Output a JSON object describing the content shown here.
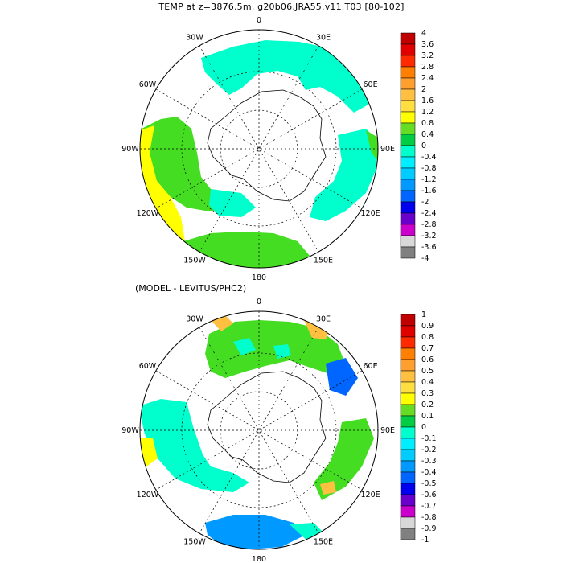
{
  "title": "TEMP at z=3876.5m, g20b06.JRA55.v11.T03 [80-102]",
  "subtitle": "(MODEL - LEVITUS/PHC2)",
  "longitude_labels": [
    "0",
    "30E",
    "60E",
    "90E",
    "120E",
    "150E",
    "180",
    "150W",
    "120W",
    "90W",
    "60W",
    "30W"
  ],
  "map_top": {
    "colorbar": {
      "labels": [
        "4",
        "3.6",
        "3.2",
        "2.8",
        "2.4",
        "2",
        "1.6",
        "1.2",
        "0.8",
        "0.4",
        "0",
        "-0.4",
        "-0.8",
        "-1.2",
        "-1.6",
        "-2",
        "-2.4",
        "-2.8",
        "-3.2",
        "-3.6",
        "-4"
      ],
      "colors": [
        "#c00000",
        "#e00000",
        "#ff2a00",
        "#ff7f00",
        "#ff9f30",
        "#ffbf40",
        "#ffdf40",
        "#ffff00",
        "#66dd22",
        "#00cc44",
        "#00ffcc",
        "#00eeff",
        "#00ccff",
        "#0099ff",
        "#0066ff",
        "#0000ee",
        "#6a00cc",
        "#cc00cc",
        "#d8d8d8",
        "#808080"
      ]
    }
  },
  "map_bottom": {
    "colorbar": {
      "labels": [
        "1",
        "0.9",
        "0.8",
        "0.7",
        "0.6",
        "0.5",
        "0.4",
        "0.3",
        "0.2",
        "0.1",
        "0",
        "-0.1",
        "-0.2",
        "-0.3",
        "-0.4",
        "-0.5",
        "-0.6",
        "-0.7",
        "-0.8",
        "-0.9",
        "-1"
      ],
      "colors": [
        "#c00000",
        "#e00000",
        "#ff2a00",
        "#ff7f00",
        "#ff9f30",
        "#ffbf40",
        "#ffdf40",
        "#ffff00",
        "#66dd22",
        "#00cc44",
        "#00ffcc",
        "#00eeff",
        "#00ccff",
        "#0099ff",
        "#0066ff",
        "#0000ee",
        "#6a00cc",
        "#cc00cc",
        "#d8d8d8",
        "#808080"
      ]
    }
  }
}
